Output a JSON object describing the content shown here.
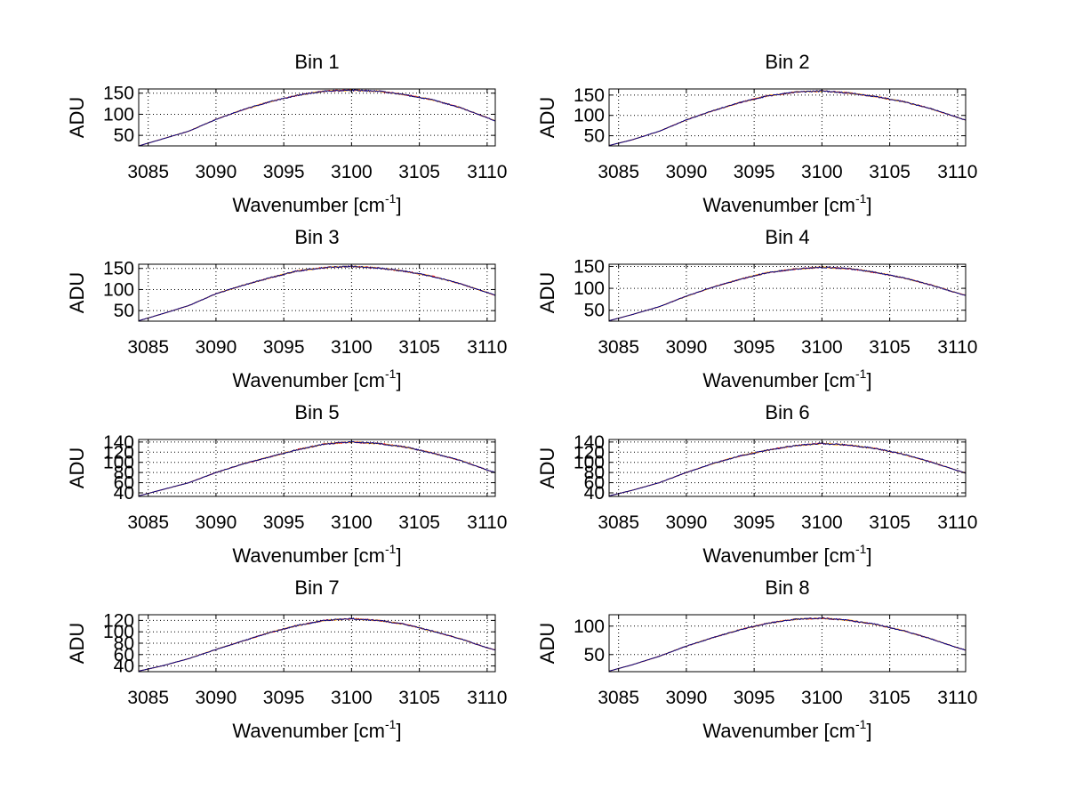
{
  "figure": {
    "colors": {
      "background": "#ffffff",
      "axes": "#000000",
      "grid": "#000000",
      "series": [
        "#ff0000",
        "#ffb300",
        "#00008b"
      ]
    }
  },
  "chart_data": [
    {
      "type": "line",
      "title": "Bin 1",
      "xlabel": "Wavenumber [cm",
      "xlabel_sup": "-1",
      "xlabel_end": "]",
      "ylabel": "ADU",
      "xlim": [
        3084.3,
        3110.6
      ],
      "ylim": [
        25,
        160
      ],
      "xticks": [
        3085,
        3090,
        3095,
        3100,
        3105,
        3110
      ],
      "yticks": [
        50,
        100,
        150
      ],
      "grid": true,
      "x": [
        3084.3,
        3086,
        3088,
        3090,
        3092,
        3094,
        3096,
        3098,
        3100,
        3102,
        3104,
        3106,
        3108,
        3110,
        3110.6
      ],
      "y": [
        25,
        41,
        60,
        88,
        111,
        130,
        145,
        155,
        157,
        155,
        146,
        134,
        116,
        92,
        84
      ]
    },
    {
      "type": "line",
      "title": "Bin 2",
      "xlabel": "Wavenumber [cm",
      "xlabel_sup": "-1",
      "xlabel_end": "]",
      "ylabel": "ADU",
      "xlim": [
        3084.3,
        3110.6
      ],
      "ylim": [
        25,
        165
      ],
      "xticks": [
        3085,
        3090,
        3095,
        3100,
        3105,
        3110
      ],
      "yticks": [
        50,
        100,
        150
      ],
      "grid": true,
      "x": [
        3084.3,
        3086,
        3088,
        3090,
        3092,
        3094,
        3096,
        3098,
        3100,
        3102,
        3104,
        3106,
        3108,
        3110,
        3110.6
      ],
      "y": [
        26,
        40,
        61,
        89,
        112,
        132,
        148,
        157,
        160,
        155,
        146,
        134,
        117,
        95,
        88
      ]
    },
    {
      "type": "line",
      "title": "Bin 3",
      "xlabel": "Wavenumber [cm",
      "xlabel_sup": "-1",
      "xlabel_end": "]",
      "ylabel": "ADU",
      "xlim": [
        3084.3,
        3110.6
      ],
      "ylim": [
        25,
        160
      ],
      "xticks": [
        3085,
        3090,
        3095,
        3100,
        3105,
        3110
      ],
      "yticks": [
        50,
        100,
        150
      ],
      "grid": true,
      "x": [
        3084.3,
        3086,
        3088,
        3090,
        3092,
        3094,
        3096,
        3098,
        3100,
        3102,
        3104,
        3106,
        3108,
        3110,
        3110.6
      ],
      "y": [
        26,
        42,
        62,
        90,
        110,
        128,
        144,
        152,
        155,
        151,
        143,
        131,
        114,
        93,
        86
      ]
    },
    {
      "type": "line",
      "title": "Bin 4",
      "xlabel": "Wavenumber [cm",
      "xlabel_sup": "-1",
      "xlabel_end": "]",
      "ylabel": "ADU",
      "xlim": [
        3084.3,
        3110.6
      ],
      "ylim": [
        25,
        155
      ],
      "xticks": [
        3085,
        3090,
        3095,
        3100,
        3105,
        3110
      ],
      "yticks": [
        50,
        100,
        150
      ],
      "grid": true,
      "x": [
        3084.3,
        3086,
        3088,
        3090,
        3092,
        3094,
        3096,
        3098,
        3100,
        3102,
        3104,
        3106,
        3108,
        3110,
        3110.6
      ],
      "y": [
        26,
        40,
        58,
        82,
        103,
        121,
        136,
        144,
        148,
        145,
        136,
        124,
        108,
        89,
        84
      ]
    },
    {
      "type": "line",
      "title": "Bin 5",
      "xlabel": "Wavenumber [cm",
      "xlabel_sup": "-1",
      "xlabel_end": "]",
      "ylabel": "ADU",
      "xlim": [
        3084.3,
        3110.6
      ],
      "ylim": [
        33,
        145
      ],
      "xticks": [
        3085,
        3090,
        3095,
        3100,
        3105,
        3110
      ],
      "yticks": [
        40,
        60,
        80,
        100,
        120,
        140
      ],
      "ytick_labels": [
        "40",
        "60",
        "80",
        "100",
        "120",
        "140"
      ],
      "grid": true,
      "x": [
        3084.3,
        3086,
        3088,
        3090,
        3092,
        3094,
        3096,
        3098,
        3100,
        3102,
        3104,
        3106,
        3108,
        3110,
        3110.6
      ],
      "y": [
        34,
        46,
        60,
        80,
        97,
        111,
        125,
        136,
        140,
        137,
        130,
        118,
        104,
        85,
        80
      ]
    },
    {
      "type": "line",
      "title": "Bin 6",
      "xlabel": "Wavenumber [cm",
      "xlabel_sup": "-1",
      "xlabel_end": "]",
      "ylabel": "ADU",
      "xlim": [
        3084.3,
        3110.6
      ],
      "ylim": [
        33,
        145
      ],
      "xticks": [
        3085,
        3090,
        3095,
        3100,
        3105,
        3110
      ],
      "yticks": [
        40,
        60,
        80,
        100,
        120,
        140
      ],
      "ytick_labels": [
        "40",
        "60",
        "80",
        "100",
        "120",
        "140"
      ],
      "grid": true,
      "x": [
        3084.3,
        3086,
        3088,
        3090,
        3092,
        3094,
        3096,
        3098,
        3100,
        3102,
        3104,
        3106,
        3108,
        3110,
        3110.6
      ],
      "y": [
        34,
        45,
        60,
        80,
        98,
        113,
        124,
        133,
        137,
        134,
        127,
        116,
        101,
        84,
        79
      ]
    },
    {
      "type": "line",
      "title": "Bin 7",
      "xlabel": "Wavenumber [cm",
      "xlabel_sup": "-1",
      "xlabel_end": "]",
      "ylabel": "ADU",
      "xlim": [
        3084.3,
        3110.6
      ],
      "ylim": [
        30,
        130
      ],
      "xticks": [
        3085,
        3090,
        3095,
        3100,
        3105,
        3110
      ],
      "yticks": [
        40,
        60,
        80,
        100,
        120
      ],
      "ytick_labels": [
        "40",
        "60",
        "80",
        "100",
        "120"
      ],
      "grid": true,
      "x": [
        3084.3,
        3086,
        3088,
        3090,
        3092,
        3094,
        3096,
        3098,
        3100,
        3102,
        3104,
        3106,
        3108,
        3110,
        3110.6
      ],
      "y": [
        31,
        40,
        53,
        69,
        84,
        99,
        111,
        120,
        123,
        120,
        113,
        101,
        88,
        72,
        68
      ]
    },
    {
      "type": "line",
      "title": "Bin 8",
      "xlabel": "Wavenumber [cm",
      "xlabel_sup": "-1",
      "xlabel_end": "]",
      "ylabel": "ADU",
      "xlim": [
        3084.3,
        3110.6
      ],
      "ylim": [
        20,
        120
      ],
      "xticks": [
        3085,
        3090,
        3095,
        3100,
        3105,
        3110
      ],
      "yticks": [
        50,
        100
      ],
      "grid": true,
      "x": [
        3084.3,
        3086,
        3088,
        3090,
        3092,
        3094,
        3096,
        3098,
        3100,
        3102,
        3104,
        3106,
        3108,
        3110,
        3110.6
      ],
      "y": [
        21,
        32,
        47,
        65,
        80,
        94,
        105,
        112,
        114,
        110,
        103,
        92,
        78,
        62,
        58
      ]
    }
  ]
}
